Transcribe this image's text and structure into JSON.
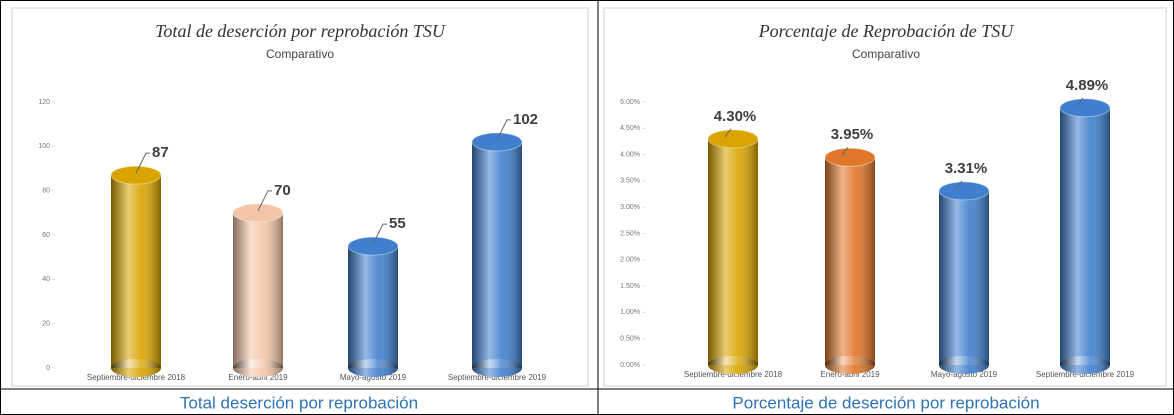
{
  "chart_data": [
    {
      "type": "bar",
      "title": "Total de deserción por reprobación TSU",
      "subtitle": "Comparativo",
      "categories": [
        "Septiembre-diciembre 2018",
        "Enero-abril 2019",
        "Mayo-agosto 2019",
        "Septiembre-diciembre 2019"
      ],
      "values": [
        87,
        70,
        55,
        102
      ],
      "colors": [
        "#d9a400",
        "#f3c6a8",
        "#3f7fce",
        "#3f7fce"
      ],
      "ylim": [
        0,
        120
      ],
      "yticks": [
        0,
        20,
        40,
        60,
        80,
        100,
        120
      ]
    },
    {
      "type": "bar",
      "title": "Porcentaje de Reprobación de TSU",
      "subtitle": "Comparativo",
      "categories": [
        "Septiembre-diciembre 2018",
        "Enero-abril 2019",
        "Mayo-agosto 2019",
        "Septiembre-diciembre 2019"
      ],
      "values": [
        4.3,
        3.95,
        3.31,
        4.89
      ],
      "value_labels": [
        "4.30%",
        "3.95%",
        "3.31%",
        "4.89%"
      ],
      "colors": [
        "#d9a400",
        "#e0762a",
        "#3f7fce",
        "#3f7fce"
      ],
      "ylim": [
        0,
        5
      ],
      "yticks": [
        {
          "value": 0,
          "label": "0.00%"
        },
        {
          "value": 0.5,
          "label": "0.50%"
        },
        {
          "value": 1,
          "label": "1.00%"
        },
        {
          "value": 1.5,
          "label": "1.50%"
        },
        {
          "value": 2,
          "label": "2.00%"
        },
        {
          "value": 2.5,
          "label": "2.50%"
        },
        {
          "value": 3,
          "label": "3.00%"
        },
        {
          "value": 3.5,
          "label": "3.50%"
        },
        {
          "value": 4,
          "label": "4.00%"
        },
        {
          "value": 4.5,
          "label": "4.50%"
        },
        {
          "value": 5,
          "label": "5.00%"
        }
      ]
    }
  ],
  "captions": [
    "Total deserción por reprobación",
    "Porcentaje de deserción por reprobación"
  ]
}
